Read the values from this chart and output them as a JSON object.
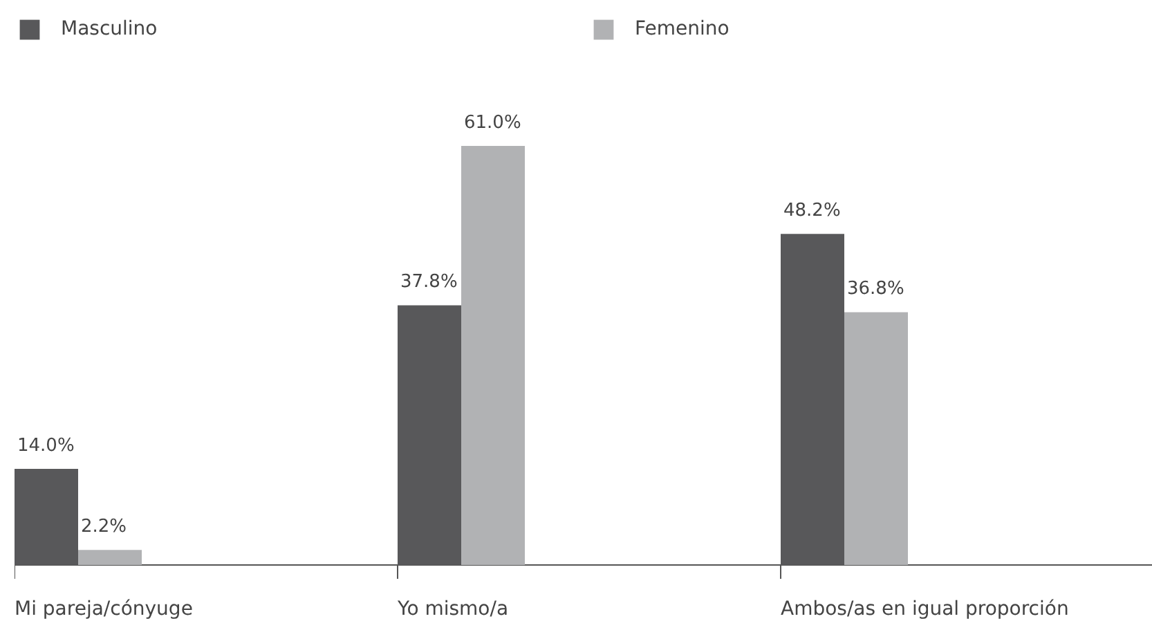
{
  "chart_data": {
    "type": "bar",
    "categories": [
      "Mi pareja/cónyuge",
      "Yo mismo/a",
      "Ambos/as en igual proporción"
    ],
    "series": [
      {
        "name": "Masculino",
        "color": "#58585a",
        "values": [
          14.0,
          37.8,
          48.2
        ],
        "value_labels": [
          "14.0%",
          "37.8%",
          "48.2%"
        ]
      },
      {
        "name": "Femenino",
        "color": "#b1b2b4",
        "values": [
          2.2,
          61.0,
          36.8
        ],
        "value_labels": [
          "2.2%",
          "61.0%",
          "36.8%"
        ]
      }
    ],
    "legend": "top left",
    "grid": false,
    "tick_labels": "x"
  }
}
